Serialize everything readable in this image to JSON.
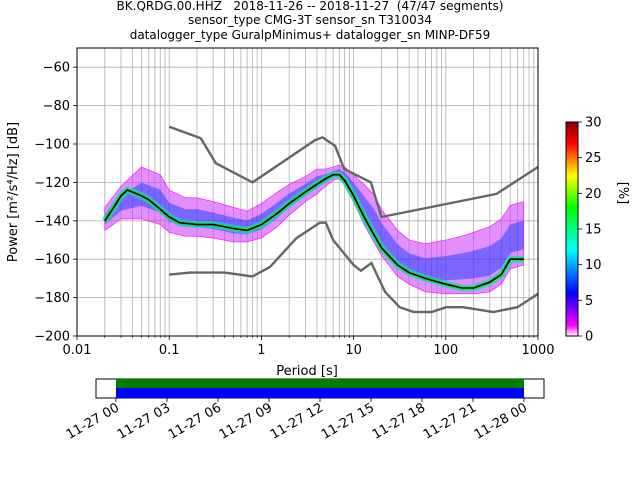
{
  "title_lines": [
    "BK.QRDG.00.HHZ   2018-11-26 -- 2018-11-27  (47/47 segments)",
    "sensor_type CMG-3T sensor_sn T310034",
    "datalogger_type GuralpMinimus+ datalogger_sn MINP-DF59"
  ],
  "chart_data": {
    "type": "heatmap",
    "xlabel": "Period [s]",
    "ylabel": "Power [m²/s⁴/Hz] [dB]",
    "xscale": "log",
    "xlim": [
      0.01,
      1000
    ],
    "ylim": [
      -200,
      -50
    ],
    "x_ticks": [
      0.01,
      0.1,
      1,
      10,
      100,
      1000
    ],
    "x_tick_labels": [
      "0.01",
      "0.1",
      "1",
      "10",
      "100",
      "1000"
    ],
    "y_ticks": [
      -200,
      -180,
      -160,
      -140,
      -120,
      -100,
      -80,
      -60
    ],
    "y_tick_labels": [
      "−200",
      "−180",
      "−160",
      "−140",
      "−120",
      "−100",
      "−80",
      "−60"
    ],
    "grid": true,
    "colorbar": {
      "label": "[%]",
      "range": [
        0,
        30
      ],
      "ticks": [
        0,
        5,
        10,
        15,
        20,
        25,
        30
      ],
      "tick_labels": [
        "0",
        "5",
        "10",
        "15",
        "20",
        "25",
        "30"
      ],
      "colors": [
        "#ffffff",
        "#ff00ff",
        "#0000ff",
        "#00ffff",
        "#00ff00",
        "#ffff00",
        "#ff0000",
        "#8b0000"
      ]
    },
    "mode_curve": {
      "name": "mode",
      "color": "#000000",
      "points": [
        [
          0.02,
          -140
        ],
        [
          0.025,
          -133
        ],
        [
          0.03,
          -127
        ],
        [
          0.035,
          -124
        ],
        [
          0.04,
          -125
        ],
        [
          0.05,
          -127
        ],
        [
          0.06,
          -129
        ],
        [
          0.08,
          -134
        ],
        [
          0.1,
          -138
        ],
        [
          0.13,
          -141
        ],
        [
          0.2,
          -142
        ],
        [
          0.3,
          -142
        ],
        [
          0.5,
          -144
        ],
        [
          0.7,
          -145
        ],
        [
          1,
          -142
        ],
        [
          1.5,
          -136
        ],
        [
          2,
          -131
        ],
        [
          3,
          -125
        ],
        [
          4,
          -121
        ],
        [
          5,
          -118
        ],
        [
          6,
          -116
        ],
        [
          7,
          -116
        ],
        [
          8,
          -119
        ],
        [
          10,
          -127
        ],
        [
          13,
          -138
        ],
        [
          17,
          -148
        ],
        [
          20,
          -154
        ],
        [
          25,
          -159
        ],
        [
          30,
          -163
        ],
        [
          40,
          -167
        ],
        [
          60,
          -170
        ],
        [
          100,
          -173
        ],
        [
          150,
          -175
        ],
        [
          200,
          -175
        ],
        [
          300,
          -172
        ],
        [
          400,
          -168
        ],
        [
          500,
          -160
        ],
        [
          700,
          -160
        ]
      ]
    },
    "noise_models": [
      {
        "color": "#666666",
        "points": [
          [
            0.1,
            -91
          ],
          [
            0.22,
            -97
          ],
          [
            0.32,
            -110
          ],
          [
            0.8,
            -120
          ],
          [
            3.8,
            -98
          ],
          [
            4.6,
            -96.5
          ],
          [
            6.3,
            -101
          ],
          [
            7.9,
            -113
          ],
          [
            15.4,
            -120
          ],
          [
            20,
            -138
          ],
          [
            354.8,
            -126
          ],
          [
            1000,
            -112
          ]
        ]
      },
      {
        "color": "#666666",
        "points": [
          [
            0.1,
            -168
          ],
          [
            0.17,
            -167
          ],
          [
            0.4,
            -167
          ],
          [
            0.8,
            -169
          ],
          [
            1.24,
            -164
          ],
          [
            2.4,
            -149
          ],
          [
            4.3,
            -141
          ],
          [
            5,
            -141
          ],
          [
            6,
            -150
          ],
          [
            10,
            -163
          ],
          [
            12,
            -166
          ],
          [
            15.6,
            -162
          ],
          [
            21.9,
            -177
          ],
          [
            31.6,
            -185
          ],
          [
            45,
            -187.5
          ],
          [
            70,
            -187.5
          ],
          [
            101,
            -185
          ],
          [
            154,
            -185
          ],
          [
            328,
            -187.5
          ],
          [
            600,
            -185
          ],
          [
            1000,
            -178
          ]
        ]
      }
    ],
    "distribution_bands": [
      {
        "x": [
          0.02,
          0.03,
          0.05,
          0.08,
          0.1,
          0.15,
          0.2,
          0.3,
          0.5,
          0.7,
          1,
          1.5,
          2,
          3,
          4,
          5,
          6,
          7,
          8,
          10,
          13,
          17,
          20,
          25,
          30,
          40,
          60,
          100,
          150,
          200,
          300,
          400,
          500,
          700
        ],
        "low": [
          -145,
          -139,
          -139,
          -142,
          -146,
          -148,
          -148,
          -149,
          -151,
          -151,
          -149,
          -143,
          -137,
          -130,
          -126,
          -122,
          -119,
          -118,
          -121,
          -130,
          -142,
          -152,
          -158,
          -164,
          -169,
          -173,
          -177,
          -178,
          -178,
          -178,
          -177,
          -173,
          -165,
          -163
        ],
        "high": [
          -133,
          -122,
          -112,
          -116,
          -124,
          -128,
          -128,
          -130,
          -133,
          -135,
          -131,
          -125,
          -121,
          -117,
          -113,
          -113,
          -112,
          -111,
          -112,
          -116,
          -121,
          -127,
          -134,
          -140,
          -145,
          -150,
          -152,
          -150,
          -148,
          -146,
          -143,
          -139,
          -132,
          -130
        ]
      }
    ],
    "timeline": {
      "ticks": [
        "11-27 00",
        "11-27 03",
        "11-27 06",
        "11-27 09",
        "11-27 12",
        "11-27 15",
        "11-27 18",
        "11-27 21",
        "11-28 00"
      ],
      "coverage_color": "#0000ff",
      "data_color": "#008000"
    }
  }
}
